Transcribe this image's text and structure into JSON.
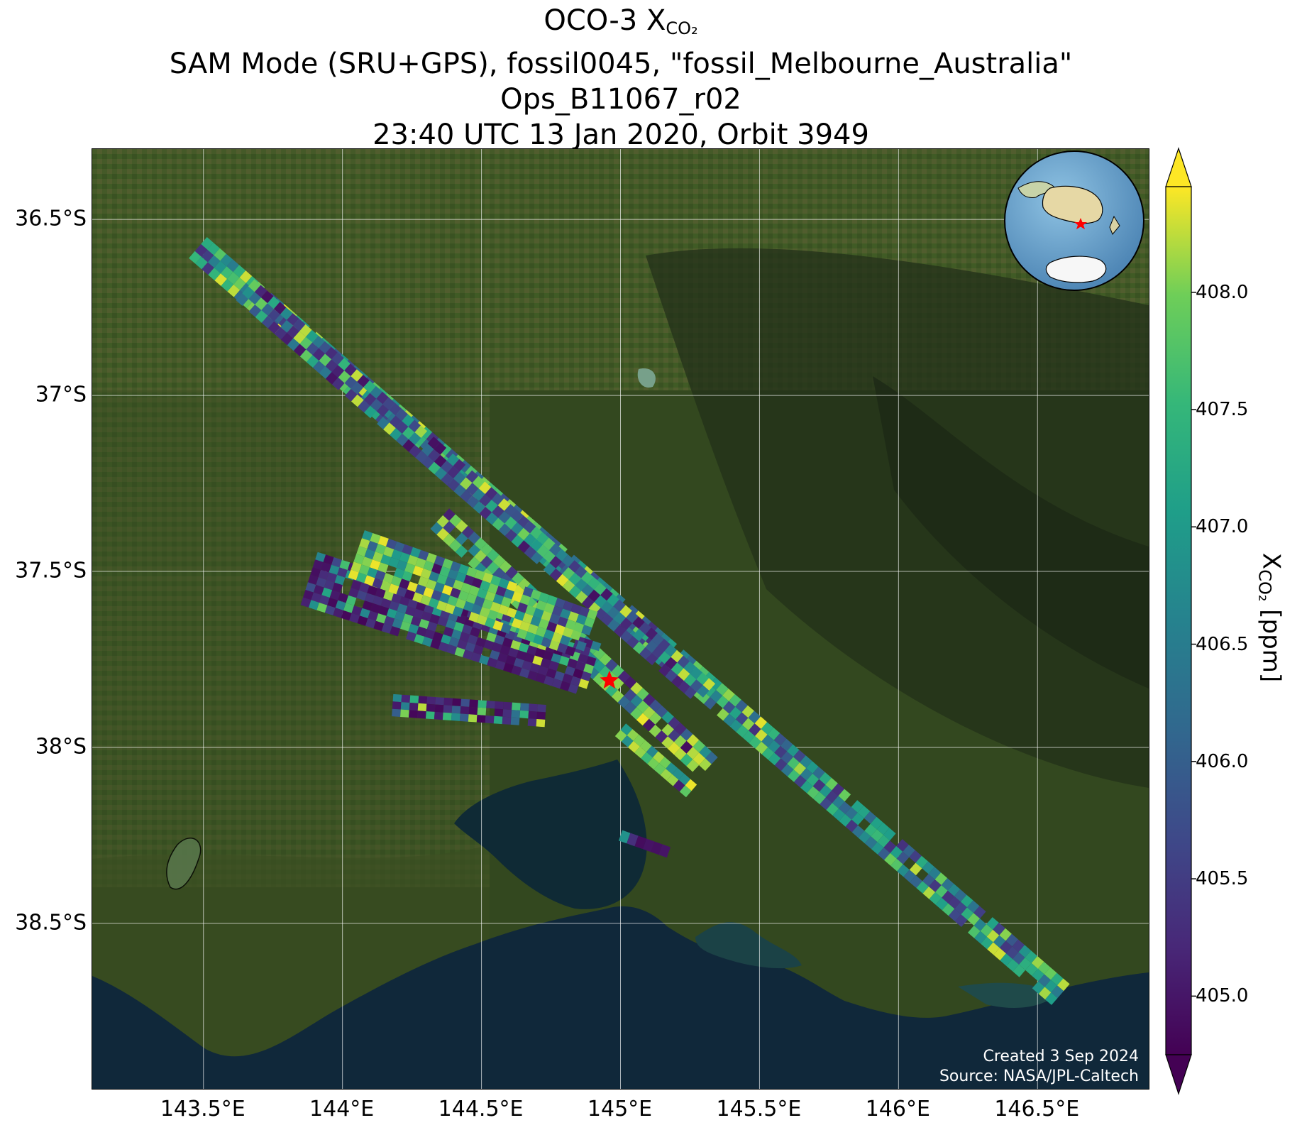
{
  "title": {
    "line1_prefix": "OCO-3 X",
    "line1_sub": "CO₂",
    "line2": "SAM Mode (SRU+GPS), fossil0045, \"fossil_Melbourne_Australia\"",
    "line3": "Ops_B11067_r02",
    "line4": "23:40 UTC 13 Jan 2020, Orbit 3949"
  },
  "map": {
    "lon_range": [
      143.1,
      146.9
    ],
    "lat_range": [
      -38.97,
      -36.3
    ],
    "lat_ticks": [
      {
        "value": -36.5,
        "label": "36.5°S"
      },
      {
        "value": -37.0,
        "label": "37°S"
      },
      {
        "value": -37.5,
        "label": "37.5°S"
      },
      {
        "value": -38.0,
        "label": "38°S"
      },
      {
        "value": -38.5,
        "label": "38.5°S"
      }
    ],
    "lon_ticks": [
      {
        "value": 143.5,
        "label": "143.5°E"
      },
      {
        "value": 144.0,
        "label": "144°E"
      },
      {
        "value": 144.5,
        "label": "144.5°E"
      },
      {
        "value": 145.0,
        "label": "145°E"
      },
      {
        "value": 145.5,
        "label": "145.5°E"
      },
      {
        "value": 146.0,
        "label": "146°E"
      },
      {
        "value": 146.5,
        "label": "146.5°E"
      }
    ],
    "target": {
      "name": "fossil_Melbourne_Australia",
      "lon": 144.96,
      "lat": -37.81,
      "marker": "star-icon",
      "color": "#ff0000"
    },
    "credit_line1": "Created 3 Sep 2024",
    "credit_line2": "Source: NASA/JPL-Caltech",
    "inset": "globe-inset-icon"
  },
  "chart_data": {
    "type": "heatmap",
    "variable": "XCO2",
    "units": "ppm",
    "colormap": "viridis",
    "vmin": 404.75,
    "vmax": 408.45,
    "extend": "both",
    "grid": true,
    "swaths": [
      {
        "start": {
          "lon": 143.48,
          "lat": -36.58
        },
        "end": {
          "lon": 146.58,
          "lat": -38.7
        },
        "width_deg": 0.1,
        "pattern": "mixed"
      },
      {
        "start": {
          "lon": 143.65,
          "lat": -36.7
        },
        "end": {
          "lon": 145.31,
          "lat": -37.85
        },
        "width_deg": 0.1,
        "pattern": "mixed_low"
      },
      {
        "start": {
          "lon": 144.35,
          "lat": -37.35
        },
        "end": {
          "lon": 145.32,
          "lat": -38.06
        },
        "width_deg": 0.1,
        "pattern": "mixed_high"
      },
      {
        "start": {
          "lon": 143.88,
          "lat": -37.52
        },
        "end": {
          "lon": 144.9,
          "lat": -37.78
        },
        "width_deg": 0.2,
        "pattern": "low"
      },
      {
        "start": {
          "lon": 144.05,
          "lat": -37.45
        },
        "end": {
          "lon": 144.88,
          "lat": -37.68
        },
        "width_deg": 0.18,
        "pattern": "mixed_high"
      },
      {
        "start": {
          "lon": 144.18,
          "lat": -37.88
        },
        "end": {
          "lon": 144.72,
          "lat": -37.91
        },
        "width_deg": 0.08,
        "pattern": "low"
      },
      {
        "start": {
          "lon": 145.0,
          "lat": -37.95
        },
        "end": {
          "lon": 145.25,
          "lat": -38.12
        },
        "width_deg": 0.06,
        "pattern": "mixed_high"
      },
      {
        "start": {
          "lon": 145.0,
          "lat": -38.25
        },
        "end": {
          "lon": 145.18,
          "lat": -38.3
        },
        "width_deg": 0.04,
        "pattern": "low"
      }
    ],
    "colorbar": {
      "ticks": [
        405.0,
        405.5,
        406.0,
        406.5,
        407.0,
        407.5,
        408.0
      ],
      "tick_labels": [
        "405.0",
        "405.5",
        "406.0",
        "406.5",
        "407.0",
        "407.5",
        "408.0"
      ],
      "label_prefix": "X",
      "label_sub": "CO₂",
      "label_suffix": " [ppm]"
    }
  }
}
